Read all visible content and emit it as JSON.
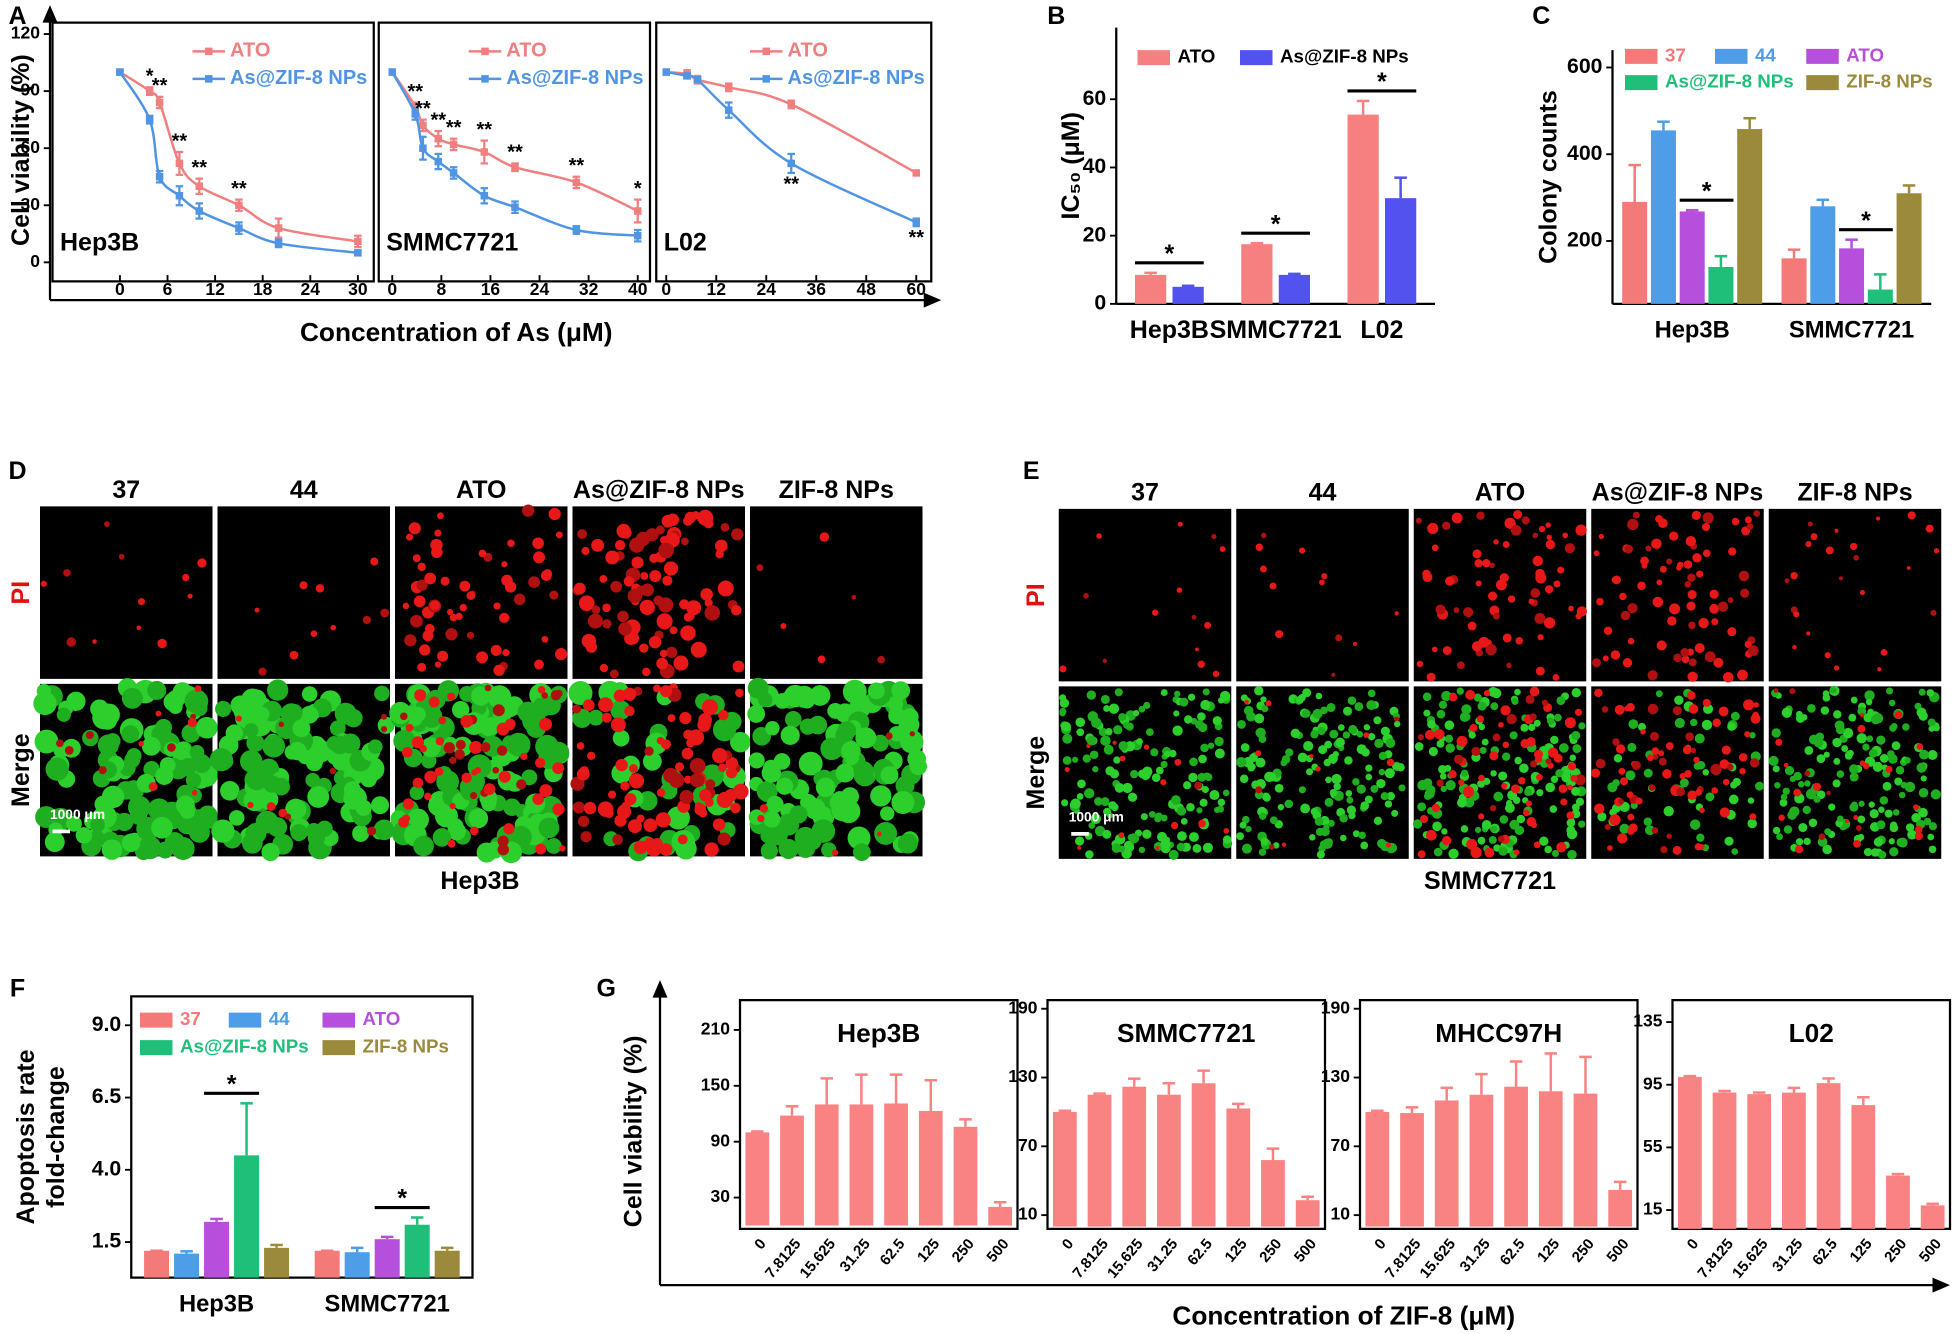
{
  "chart_data": [
    {
      "type": "line",
      "panel": "A",
      "ylabel": "Cell viability (%)",
      "xlabel": "Concentration of As (μM)",
      "ylim": [
        -10,
        126
      ],
      "yticks": [
        0,
        30,
        60,
        90,
        120
      ],
      "subplots": [
        {
          "title": "Hep3B",
          "xlim": [
            -8.5,
            32
          ],
          "xticks": [
            0,
            6,
            12,
            18,
            24,
            30
          ],
          "x": [
            0,
            3.75,
            5,
            7.5,
            10,
            15,
            20,
            30
          ],
          "series": [
            {
              "name": "ATO",
              "color": "#f07f7f",
              "values": [
                100,
                90,
                84,
                52,
                40,
                30,
                18,
                11
              ],
              "errors": [
                1,
                2,
                3,
                6,
                4,
                3,
                5,
                3
              ]
            },
            {
              "name": "As@ZIF-8 NPs",
              "color": "#4f95e3",
              "values": [
                100,
                75,
                45,
                35,
                27,
                18,
                10,
                5
              ],
              "errors": [
                1,
                2,
                3,
                5,
                4,
                3,
                2,
                1
              ]
            }
          ],
          "annotations": [
            {
              "text": "*",
              "series": 0,
              "point": 1
            },
            {
              "text": "**",
              "series": 0,
              "point": 2
            },
            {
              "text": "**",
              "series": 0,
              "point": 3
            },
            {
              "text": "**",
              "series": 0,
              "point": 4
            },
            {
              "text": "**",
              "series": 0,
              "point": 5
            }
          ]
        },
        {
          "title": "SMMC7721",
          "xlim": [
            -2.2,
            42
          ],
          "xticks": [
            0,
            8,
            16,
            24,
            32,
            40
          ],
          "x": [
            0,
            3.75,
            5,
            7.5,
            10,
            15,
            20,
            30,
            40
          ],
          "series": [
            {
              "name": "ATO",
              "color": "#f07f7f",
              "values": [
                100,
                82,
                72,
                65,
                62,
                58,
                50,
                42,
                27
              ],
              "errors": [
                1,
                2,
                3,
                4,
                3,
                6,
                2,
                3,
                6
              ]
            },
            {
              "name": "As@ZIF-8 NPs",
              "color": "#4f95e3",
              "values": [
                100,
                78,
                60,
                53,
                47,
                35,
                29,
                17,
                14
              ],
              "errors": [
                1,
                3,
                6,
                4,
                3,
                4,
                3,
                2,
                3
              ]
            }
          ],
          "annotations": [
            {
              "text": "**",
              "series": 0,
              "point": 1
            },
            {
              "text": "**",
              "series": 0,
              "point": 2
            },
            {
              "text": "**",
              "series": 0,
              "point": 3
            },
            {
              "text": "**",
              "series": 0,
              "point": 4
            },
            {
              "text": "**",
              "series": 0,
              "point": 5
            },
            {
              "text": "**",
              "series": 0,
              "point": 6
            },
            {
              "text": "**",
              "series": 0,
              "point": 7
            },
            {
              "text": "*",
              "series": 0,
              "point": 8
            }
          ]
        },
        {
          "title": "L02",
          "xlim": [
            -2.4,
            63.6
          ],
          "xticks": [
            0,
            12,
            24,
            36,
            48,
            60
          ],
          "x": [
            0,
            5,
            7.5,
            15,
            30,
            60
          ],
          "series": [
            {
              "name": "ATO",
              "color": "#f07f7f",
              "values": [
                100,
                99,
                96,
                92,
                83,
                47
              ],
              "errors": [
                1,
                2,
                2,
                2,
                2,
                1
              ]
            },
            {
              "name": "As@ZIF-8 NPs",
              "color": "#4f95e3",
              "values": [
                100,
                98,
                96,
                80,
                52,
                21
              ],
              "errors": [
                1,
                1,
                1,
                4,
                5,
                2
              ]
            }
          ],
          "annotations": [
            {
              "text": "**",
              "series": 1,
              "point": 4
            },
            {
              "text": "**",
              "series": 1,
              "point": 5
            }
          ]
        }
      ]
    },
    {
      "type": "bar",
      "panel": "B",
      "ylabel": "IC₅₀ (μM)",
      "ylim": [
        0,
        81
      ],
      "yticks": [
        0,
        20,
        40,
        60
      ],
      "categories": [
        "Hep3B",
        "SMMC7721",
        "L02"
      ],
      "series": [
        {
          "name": "ATO",
          "color": "#f68080",
          "values": [
            8.5,
            17.5,
            55.5
          ],
          "errors": [
            0.6,
            0.3,
            4
          ]
        },
        {
          "name": "As@ZIF-8 NPs",
          "color": "#5252ef",
          "values": [
            5,
            8.5,
            31
          ],
          "errors": [
            0.3,
            0.3,
            6
          ]
        }
      ],
      "annotations": [
        {
          "text": "*",
          "category": 0,
          "series": [
            0,
            1
          ]
        },
        {
          "text": "*",
          "category": 1,
          "series": [
            0,
            1
          ]
        },
        {
          "text": "*",
          "category": 2,
          "series": [
            0,
            1
          ]
        }
      ]
    },
    {
      "type": "bar",
      "panel": "C",
      "ylabel": "Colony counts",
      "ylim": [
        55,
        640
      ],
      "yticks": [
        200,
        400,
        600
      ],
      "categories": [
        "Hep3B",
        "SMMC7721"
      ],
      "series": [
        {
          "name": "37",
          "color": "#f47a7a",
          "values": [
            290,
            160
          ],
          "errors": [
            85,
            20
          ]
        },
        {
          "name": "44",
          "color": "#4d9de8",
          "values": [
            455,
            280
          ],
          "errors": [
            20,
            15
          ]
        },
        {
          "name": "ATO",
          "color": "#b64fdc",
          "values": [
            268,
            183
          ],
          "errors": [
            3,
            20
          ]
        },
        {
          "name": "As@ZIF-8 NPs",
          "color": "#1fbf7a",
          "values": [
            140,
            88
          ],
          "errors": [
            25,
            35
          ]
        },
        {
          "name": "ZIF-8 NPs",
          "color": "#9c8a3c",
          "values": [
            458,
            310
          ],
          "errors": [
            25,
            18
          ]
        }
      ],
      "annotations": [
        {
          "text": "*",
          "category": 0,
          "series": [
            2,
            3
          ]
        },
        {
          "text": "*",
          "category": 1,
          "series": [
            2,
            3
          ]
        }
      ]
    },
    {
      "type": "bar",
      "panel": "F",
      "ylabel": [
        "Apoptosis rate",
        "fold-change"
      ],
      "ylim": [
        0.27,
        10
      ],
      "yticks": [
        1.5,
        {
          "value": 4,
          "label": "4.0"
        },
        6.5,
        {
          "value": 9,
          "label": "9.0"
        }
      ],
      "categories": [
        "Hep3B",
        "SMMC7721"
      ],
      "series": [
        {
          "name": "37",
          "color": "#f47a7a",
          "values": [
            1.2,
            1.2
          ],
          "errors": [
            0,
            0
          ]
        },
        {
          "name": "44",
          "color": "#4d9de8",
          "values": [
            1.1,
            1.15
          ],
          "errors": [
            0.08,
            0.15
          ]
        },
        {
          "name": "ATO",
          "color": "#b64fdc",
          "values": [
            2.2,
            1.6
          ],
          "errors": [
            0.1,
            0.08
          ]
        },
        {
          "name": "As@ZIF-8 NPs",
          "color": "#1fbf7a",
          "values": [
            4.5,
            2.1
          ],
          "errors": [
            1.8,
            0.25
          ]
        },
        {
          "name": "ZIF-8 NPs",
          "color": "#9c8a3c",
          "values": [
            1.3,
            1.2
          ],
          "errors": [
            0.1,
            0.1
          ]
        }
      ],
      "annotations": [
        {
          "text": "*",
          "category": 0,
          "series": [
            2,
            3
          ]
        },
        {
          "text": "*",
          "category": 1,
          "series": [
            2,
            3
          ]
        }
      ]
    },
    {
      "type": "bar",
      "panel": "G",
      "ylabel": "Cell viability (%)",
      "xlabel": "Concentration of ZIF-8 (μM)",
      "color": "#f98282",
      "categories": [
        "0",
        "7.8125",
        "15.625",
        "31.25",
        "62.5",
        "125",
        "250",
        "500"
      ],
      "subplots": [
        {
          "title": "Hep3B",
          "ylim": [
            -3.6,
            242
          ],
          "yticks": [
            30,
            90,
            150,
            210
          ],
          "values": [
            100,
            118,
            130,
            130,
            131,
            123,
            106,
            20
          ],
          "errors": [
            1,
            10,
            28,
            32,
            31,
            33,
            8,
            5
          ]
        },
        {
          "title": "SMMC7721",
          "ylim": [
            -2,
            197.5
          ],
          "yticks": [
            10,
            70,
            130,
            190
          ],
          "values": [
            100,
            115,
            122,
            115,
            125,
            103,
            58,
            23
          ],
          "errors": [
            1,
            1,
            7,
            10,
            11,
            4,
            10,
            3
          ]
        },
        {
          "title": "MHCC97H",
          "ylim": [
            -2,
            197.5
          ],
          "yticks": [
            10,
            70,
            130,
            190
          ],
          "values": [
            100,
            99,
            110,
            115,
            122,
            118,
            116,
            32
          ],
          "errors": [
            1,
            5,
            11,
            18,
            22,
            33,
            32,
            7
          ]
        },
        {
          "title": "L02",
          "ylim": [
            3,
            149
          ],
          "yticks": [
            15,
            55,
            95,
            135
          ],
          "values": [
            100,
            90,
            89,
            90,
            96,
            82,
            37,
            18
          ],
          "errors": [
            0.5,
            1,
            1,
            3,
            3,
            5,
            1,
            1
          ]
        }
      ]
    }
  ],
  "image_panels": [
    {
      "panel": "D",
      "columns": [
        "37",
        "44",
        "ATO",
        "As@ZIF-8 NPs",
        "ZIF-8 NPs"
      ],
      "rows": [
        "PI",
        "Merge"
      ],
      "scale_bar": "1000 μm",
      "caption": "Hep3B"
    },
    {
      "panel": "E",
      "columns": [
        "37",
        "44",
        "ATO",
        "As@ZIF-8 NPs",
        "ZIF-8 NPs"
      ],
      "rows": [
        "PI",
        "Merge"
      ],
      "scale_bar": "1000 μm",
      "caption": "SMMC7721"
    }
  ]
}
